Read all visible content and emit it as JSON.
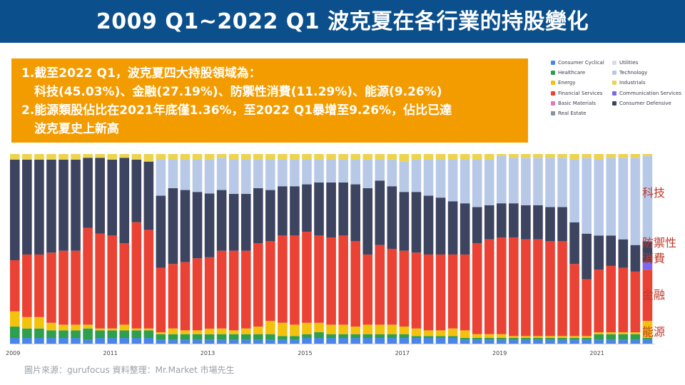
{
  "page": {
    "title": "2009 Q1~2022 Q1 波克夏在各行業的持股變化"
  },
  "callout": {
    "line1": "1.截至2022 Q1，波克夏四大持股領域為：",
    "line2": "科技(45.03%)、金融(27.19%)、防禦性消費(11.29%)、能源(9.26%)",
    "line3": "2.能源類股佔比在2021年底僅1.36%，至2022  Q1暴增至9.26%，佔比已達",
    "line4": "波克夏史上新高"
  },
  "side_labels": {
    "tech": "科技",
    "defensive_1": "防禦性",
    "defensive_2": "消費",
    "financial": "金融",
    "energy": "能源"
  },
  "footer": {
    "source": "圖片來源：gurufocus     資料整理：Mr.Market  市場先生"
  },
  "colors": {
    "consumer_cyclical": "#4a86e8",
    "healthcare": "#2e9e4f",
    "energy": "#f4c20d",
    "financial_services": "#ea4335",
    "communication_services": "#7b68ee",
    "basic_materials": "#e377c2",
    "consumer_defensive": "#3d4460",
    "real_estate": "#8a94a6",
    "utilities": "#d7dce5",
    "technology": "#b8c9e8",
    "industrials": "#ecd44f"
  },
  "chart_data": {
    "type": "bar",
    "stacked": true,
    "normalized_to": 100,
    "x_tick_labels": [
      "2009",
      "2011",
      "2013",
      "2015",
      "2017",
      "2019",
      "2021"
    ],
    "legend": [
      {
        "name": "Consumer Cyclical",
        "key": "consumer_cyclical"
      },
      {
        "name": "Utilities",
        "key": "utilities"
      },
      {
        "name": "Healthcare",
        "key": "healthcare"
      },
      {
        "name": "Technology",
        "key": "technology"
      },
      {
        "name": "Energy",
        "key": "energy"
      },
      {
        "name": "Industrials",
        "key": "industrials"
      },
      {
        "name": "Financial Services",
        "key": "financial_services"
      },
      {
        "name": "Communication Services",
        "key": "communication_services"
      },
      {
        "name": "Basic Materials",
        "key": "basic_materials"
      },
      {
        "name": "Consumer Defensive",
        "key": "consumer_defensive"
      },
      {
        "name": "Real Estate",
        "key": "real_estate"
      }
    ],
    "stack_order": [
      "consumer_cyclical",
      "healthcare",
      "energy",
      "financial_services",
      "communication_services",
      "basic_materials",
      "consumer_defensive",
      "technology",
      "industrials"
    ],
    "quarters": [
      "2009Q1",
      "2009Q2",
      "2009Q3",
      "2009Q4",
      "2010Q1",
      "2010Q2",
      "2010Q3",
      "2010Q4",
      "2011Q1",
      "2011Q2",
      "2011Q3",
      "2011Q4",
      "2012Q1",
      "2012Q2",
      "2012Q3",
      "2012Q4",
      "2013Q1",
      "2013Q2",
      "2013Q3",
      "2013Q4",
      "2014Q1",
      "2014Q2",
      "2014Q3",
      "2014Q4",
      "2015Q1",
      "2015Q2",
      "2015Q3",
      "2015Q4",
      "2016Q1",
      "2016Q2",
      "2016Q3",
      "2016Q4",
      "2017Q1",
      "2017Q2",
      "2017Q3",
      "2017Q4",
      "2018Q1",
      "2018Q2",
      "2018Q3",
      "2018Q4",
      "2019Q1",
      "2019Q2",
      "2019Q3",
      "2019Q4",
      "2020Q1",
      "2020Q2",
      "2020Q3",
      "2020Q4",
      "2021Q1",
      "2021Q2",
      "2021Q3",
      "2021Q4",
      "2022Q1"
    ],
    "series": [
      {
        "key": "consumer_cyclical",
        "values": [
          3,
          3,
          3,
          3,
          3,
          3,
          2,
          3,
          3,
          3,
          3,
          3,
          2,
          2,
          2,
          2,
          2,
          2,
          2,
          2,
          2,
          2,
          2,
          2,
          3,
          3,
          3,
          3,
          3,
          3,
          3,
          3,
          3,
          3,
          3,
          3,
          3,
          2,
          2,
          2,
          2,
          2,
          2,
          2,
          2,
          2,
          2,
          2,
          2,
          2,
          2,
          2,
          2
        ]
      },
      {
        "key": "healthcare",
        "values": [
          6,
          5,
          5,
          4,
          4,
          4,
          6,
          4,
          4,
          4,
          4,
          4,
          3,
          3,
          3,
          3,
          3,
          3,
          3,
          3,
          3,
          3,
          2,
          2,
          2,
          3,
          2,
          2,
          2,
          2,
          2,
          2,
          2,
          1,
          1,
          1,
          1,
          1,
          1,
          1,
          1,
          1,
          1,
          1,
          1,
          1,
          1,
          1,
          3,
          3,
          3,
          3,
          1
        ]
      },
      {
        "key": "energy",
        "values": [
          8,
          6,
          6,
          4,
          3,
          3,
          2,
          1,
          1,
          3,
          1,
          1,
          1,
          3,
          2,
          2,
          3,
          3,
          2,
          3,
          4,
          7,
          7,
          6,
          6,
          5,
          5,
          5,
          4,
          5,
          5,
          5,
          4,
          4,
          3,
          3,
          4,
          4,
          2,
          2,
          2,
          1,
          1,
          1,
          1,
          1,
          1,
          1,
          1,
          1,
          1,
          1,
          9
        ]
      },
      {
        "key": "financial_services",
        "values": [
          27,
          33,
          33,
          37,
          39,
          39,
          51,
          50,
          49,
          43,
          56,
          52,
          34,
          34,
          36,
          38,
          38,
          41,
          42,
          41,
          44,
          42,
          46,
          47,
          48,
          46,
          46,
          47,
          45,
          37,
          42,
          40,
          40,
          40,
          40,
          40,
          39,
          40,
          48,
          50,
          51,
          52,
          51,
          51,
          50,
          50,
          38,
          30,
          33,
          35,
          34,
          32,
          27
        ]
      },
      {
        "key": "communication_services",
        "values": [
          0,
          0,
          0,
          0,
          0,
          0,
          0,
          0,
          0,
          0,
          0,
          0,
          0,
          0,
          0,
          0,
          0,
          0,
          0,
          0,
          0,
          0,
          0,
          0,
          0,
          0,
          0,
          0,
          0,
          0,
          0,
          0,
          0,
          0,
          0,
          0,
          0,
          0,
          0,
          0,
          0,
          0,
          0,
          0,
          0,
          0,
          0,
          0,
          0,
          0,
          0,
          0,
          4
        ]
      },
      {
        "key": "basic_materials",
        "values": [
          0,
          0,
          0,
          0,
          0,
          0,
          0,
          0,
          0,
          0,
          0,
          0,
          0,
          0,
          0,
          0,
          0,
          0,
          0,
          0,
          0,
          0,
          0,
          0,
          0,
          0,
          0,
          0,
          0,
          0,
          0,
          0,
          0,
          0,
          0,
          0,
          0,
          0,
          0,
          0,
          0,
          0,
          0,
          0,
          0,
          0,
          0,
          0,
          0,
          0,
          0,
          0,
          0
        ]
      },
      {
        "key": "consumer_defensive",
        "values": [
          53,
          50,
          50,
          49,
          48,
          48,
          37,
          40,
          40,
          45,
          33,
          36,
          38,
          40,
          38,
          35,
          34,
          32,
          30,
          30,
          29,
          27,
          26,
          26,
          25,
          28,
          29,
          28,
          30,
          35,
          34,
          33,
          31,
          32,
          31,
          30,
          28,
          27,
          19,
          18,
          18,
          18,
          18,
          18,
          18,
          18,
          22,
          24,
          18,
          16,
          15,
          14,
          11
        ]
      },
      {
        "key": "technology",
        "values": [
          0,
          0,
          0,
          0,
          0,
          0,
          0,
          0,
          0,
          0,
          0,
          0,
          19,
          15,
          16,
          17,
          18,
          17,
          18,
          18,
          15,
          16,
          14,
          14,
          13,
          12,
          12,
          12,
          13,
          15,
          11,
          14,
          16,
          17,
          19,
          20,
          22,
          23,
          25,
          24,
          25,
          24,
          25,
          25,
          26,
          26,
          33,
          40,
          40,
          41,
          43,
          46,
          45
        ]
      },
      {
        "key": "industrials",
        "values": [
          3,
          3,
          3,
          3,
          3,
          3,
          2,
          2,
          3,
          2,
          3,
          4,
          3,
          3,
          3,
          3,
          3,
          2,
          3,
          3,
          3,
          3,
          3,
          3,
          3,
          3,
          3,
          3,
          3,
          3,
          3,
          3,
          4,
          3,
          3,
          3,
          3,
          3,
          3,
          3,
          1,
          2,
          2,
          2,
          2,
          2,
          3,
          2,
          3,
          2,
          2,
          2,
          1
        ]
      }
    ]
  }
}
